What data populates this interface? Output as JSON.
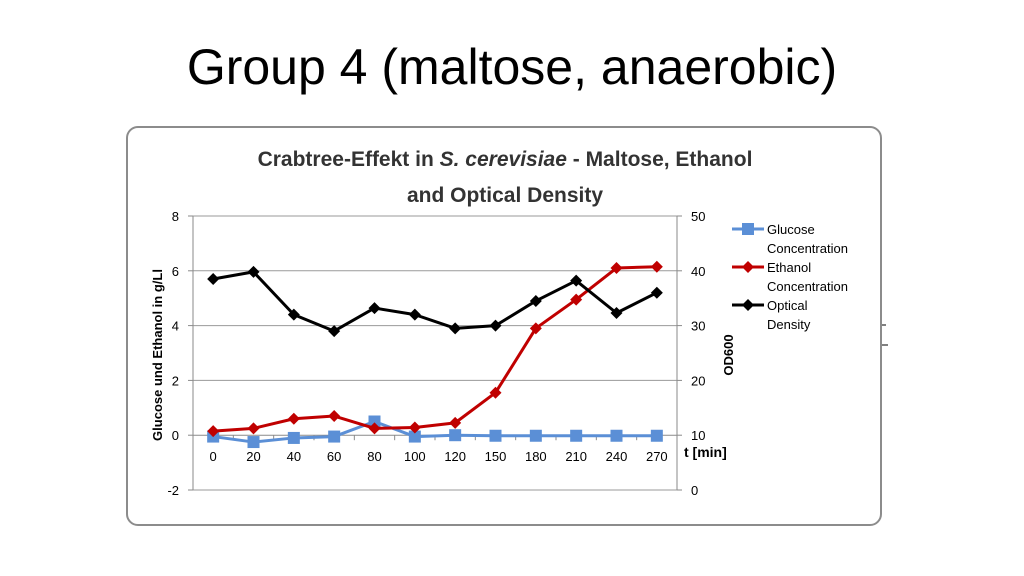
{
  "slide": {
    "title": "Group 4 (maltose, anaerobic)"
  },
  "chart_data": {
    "type": "line",
    "title_line1_a": "Crabtree-Effekt in ",
    "title_line1_b": "S. cerevisiae",
    "title_line1_c": " - Maltose, Ethanol",
    "title_line2": "and Optical Density",
    "xlabel": "t [min]",
    "ylabel_left": "Glucose und Ethanol in g/Ll",
    "ylabel_right": "OD600",
    "categories": [
      "0",
      "20",
      "40",
      "60",
      "80",
      "100",
      "120",
      "150",
      "180",
      "210",
      "240",
      "270"
    ],
    "ylim_left": [
      -2,
      8
    ],
    "yticks_left": [
      -2,
      0,
      2,
      4,
      6,
      8
    ],
    "ylim_right": [
      0,
      50
    ],
    "yticks_right": [
      0,
      10,
      20,
      30,
      40,
      50
    ],
    "grid": true,
    "legend_position": "right",
    "series": [
      {
        "name": "Glucose Concentration",
        "legend_lines": [
          "Glucose",
          "Concentration"
        ],
        "axis": "left",
        "color": "#5b8fd6",
        "marker": "square",
        "values": [
          -0.05,
          -0.25,
          -0.1,
          -0.05,
          0.5,
          -0.05,
          0.0,
          -0.02,
          -0.02,
          -0.02,
          -0.02,
          -0.02
        ]
      },
      {
        "name": "Ethanol Concentration",
        "legend_lines": [
          "Ethanol",
          "Concentration"
        ],
        "axis": "left",
        "color": "#c00000",
        "marker": "diamond",
        "values": [
          0.15,
          0.25,
          0.6,
          0.7,
          0.25,
          0.28,
          0.45,
          1.55,
          3.9,
          4.95,
          6.1,
          6.15
        ]
      },
      {
        "name": "Optical Density",
        "legend_lines": [
          "Optical",
          "Density"
        ],
        "axis": "right",
        "color": "#000000",
        "marker": "diamond",
        "values": [
          38.5,
          39.8,
          32,
          29,
          33.2,
          32,
          29.5,
          30,
          34.5,
          38.2,
          32.3,
          36
        ]
      }
    ]
  }
}
